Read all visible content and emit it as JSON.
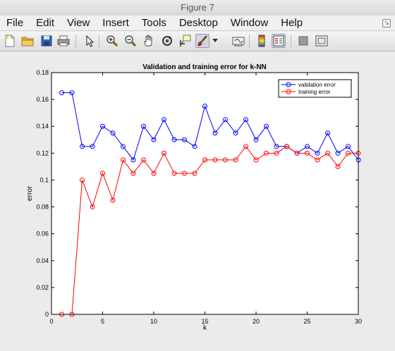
{
  "window": {
    "title": "Figure 7"
  },
  "menu": [
    "File",
    "Edit",
    "View",
    "Insert",
    "Tools",
    "Desktop",
    "Window",
    "Help"
  ],
  "toolbar": {
    "icons": [
      "new-figure-icon",
      "open-file-icon",
      "save-icon",
      "print-icon",
      "edit-plot-arrow-icon",
      "zoom-in-icon",
      "zoom-out-icon",
      "pan-hand-icon",
      "rotate-3d-icon",
      "data-cursor-icon",
      "brush-icon",
      "brush-dropdown-icon",
      "link-plot-icon",
      "insert-colorbar-icon",
      "insert-legend-icon",
      "hide-plot-tools-icon",
      "show-plot-tools-icon"
    ]
  },
  "chart_data": {
    "type": "line",
    "title": "Validation and training error for k-NN",
    "xlabel": "k",
    "ylabel": "error",
    "xlim": [
      0,
      30
    ],
    "ylim": [
      0,
      0.18
    ],
    "xticks": [
      "0",
      "5",
      "10",
      "15",
      "20",
      "25",
      "30"
    ],
    "yticks": [
      "0",
      "0.02",
      "0.04",
      "0.06",
      "0.08",
      "0.1",
      "0.12",
      "0.14",
      "0.16",
      "0.18"
    ],
    "legend_position": "top-right",
    "x": [
      1,
      2,
      3,
      4,
      5,
      6,
      7,
      8,
      9,
      10,
      11,
      12,
      13,
      14,
      15,
      16,
      17,
      18,
      19,
      20,
      21,
      22,
      23,
      24,
      25,
      26,
      27,
      28,
      29,
      30
    ],
    "series": [
      {
        "name": "validation error",
        "color": "#0000ff",
        "values": [
          0.165,
          0.165,
          0.125,
          0.125,
          0.14,
          0.135,
          0.125,
          0.115,
          0.14,
          0.13,
          0.145,
          0.13,
          0.13,
          0.125,
          0.155,
          0.135,
          0.145,
          0.135,
          0.145,
          0.13,
          0.14,
          0.125,
          0.125,
          0.12,
          0.125,
          0.12,
          0.135,
          0.12,
          0.125,
          0.115
        ]
      },
      {
        "name": "training error",
        "color": "#ff0000",
        "values": [
          0,
          0,
          0.1,
          0.08,
          0.105,
          0.085,
          0.115,
          0.105,
          0.115,
          0.105,
          0.12,
          0.105,
          0.105,
          0.105,
          0.115,
          0.115,
          0.115,
          0.115,
          0.125,
          0.115,
          0.12,
          0.12,
          0.125,
          0.12,
          0.12,
          0.115,
          0.12,
          0.11,
          0.12,
          0.12
        ]
      }
    ]
  }
}
